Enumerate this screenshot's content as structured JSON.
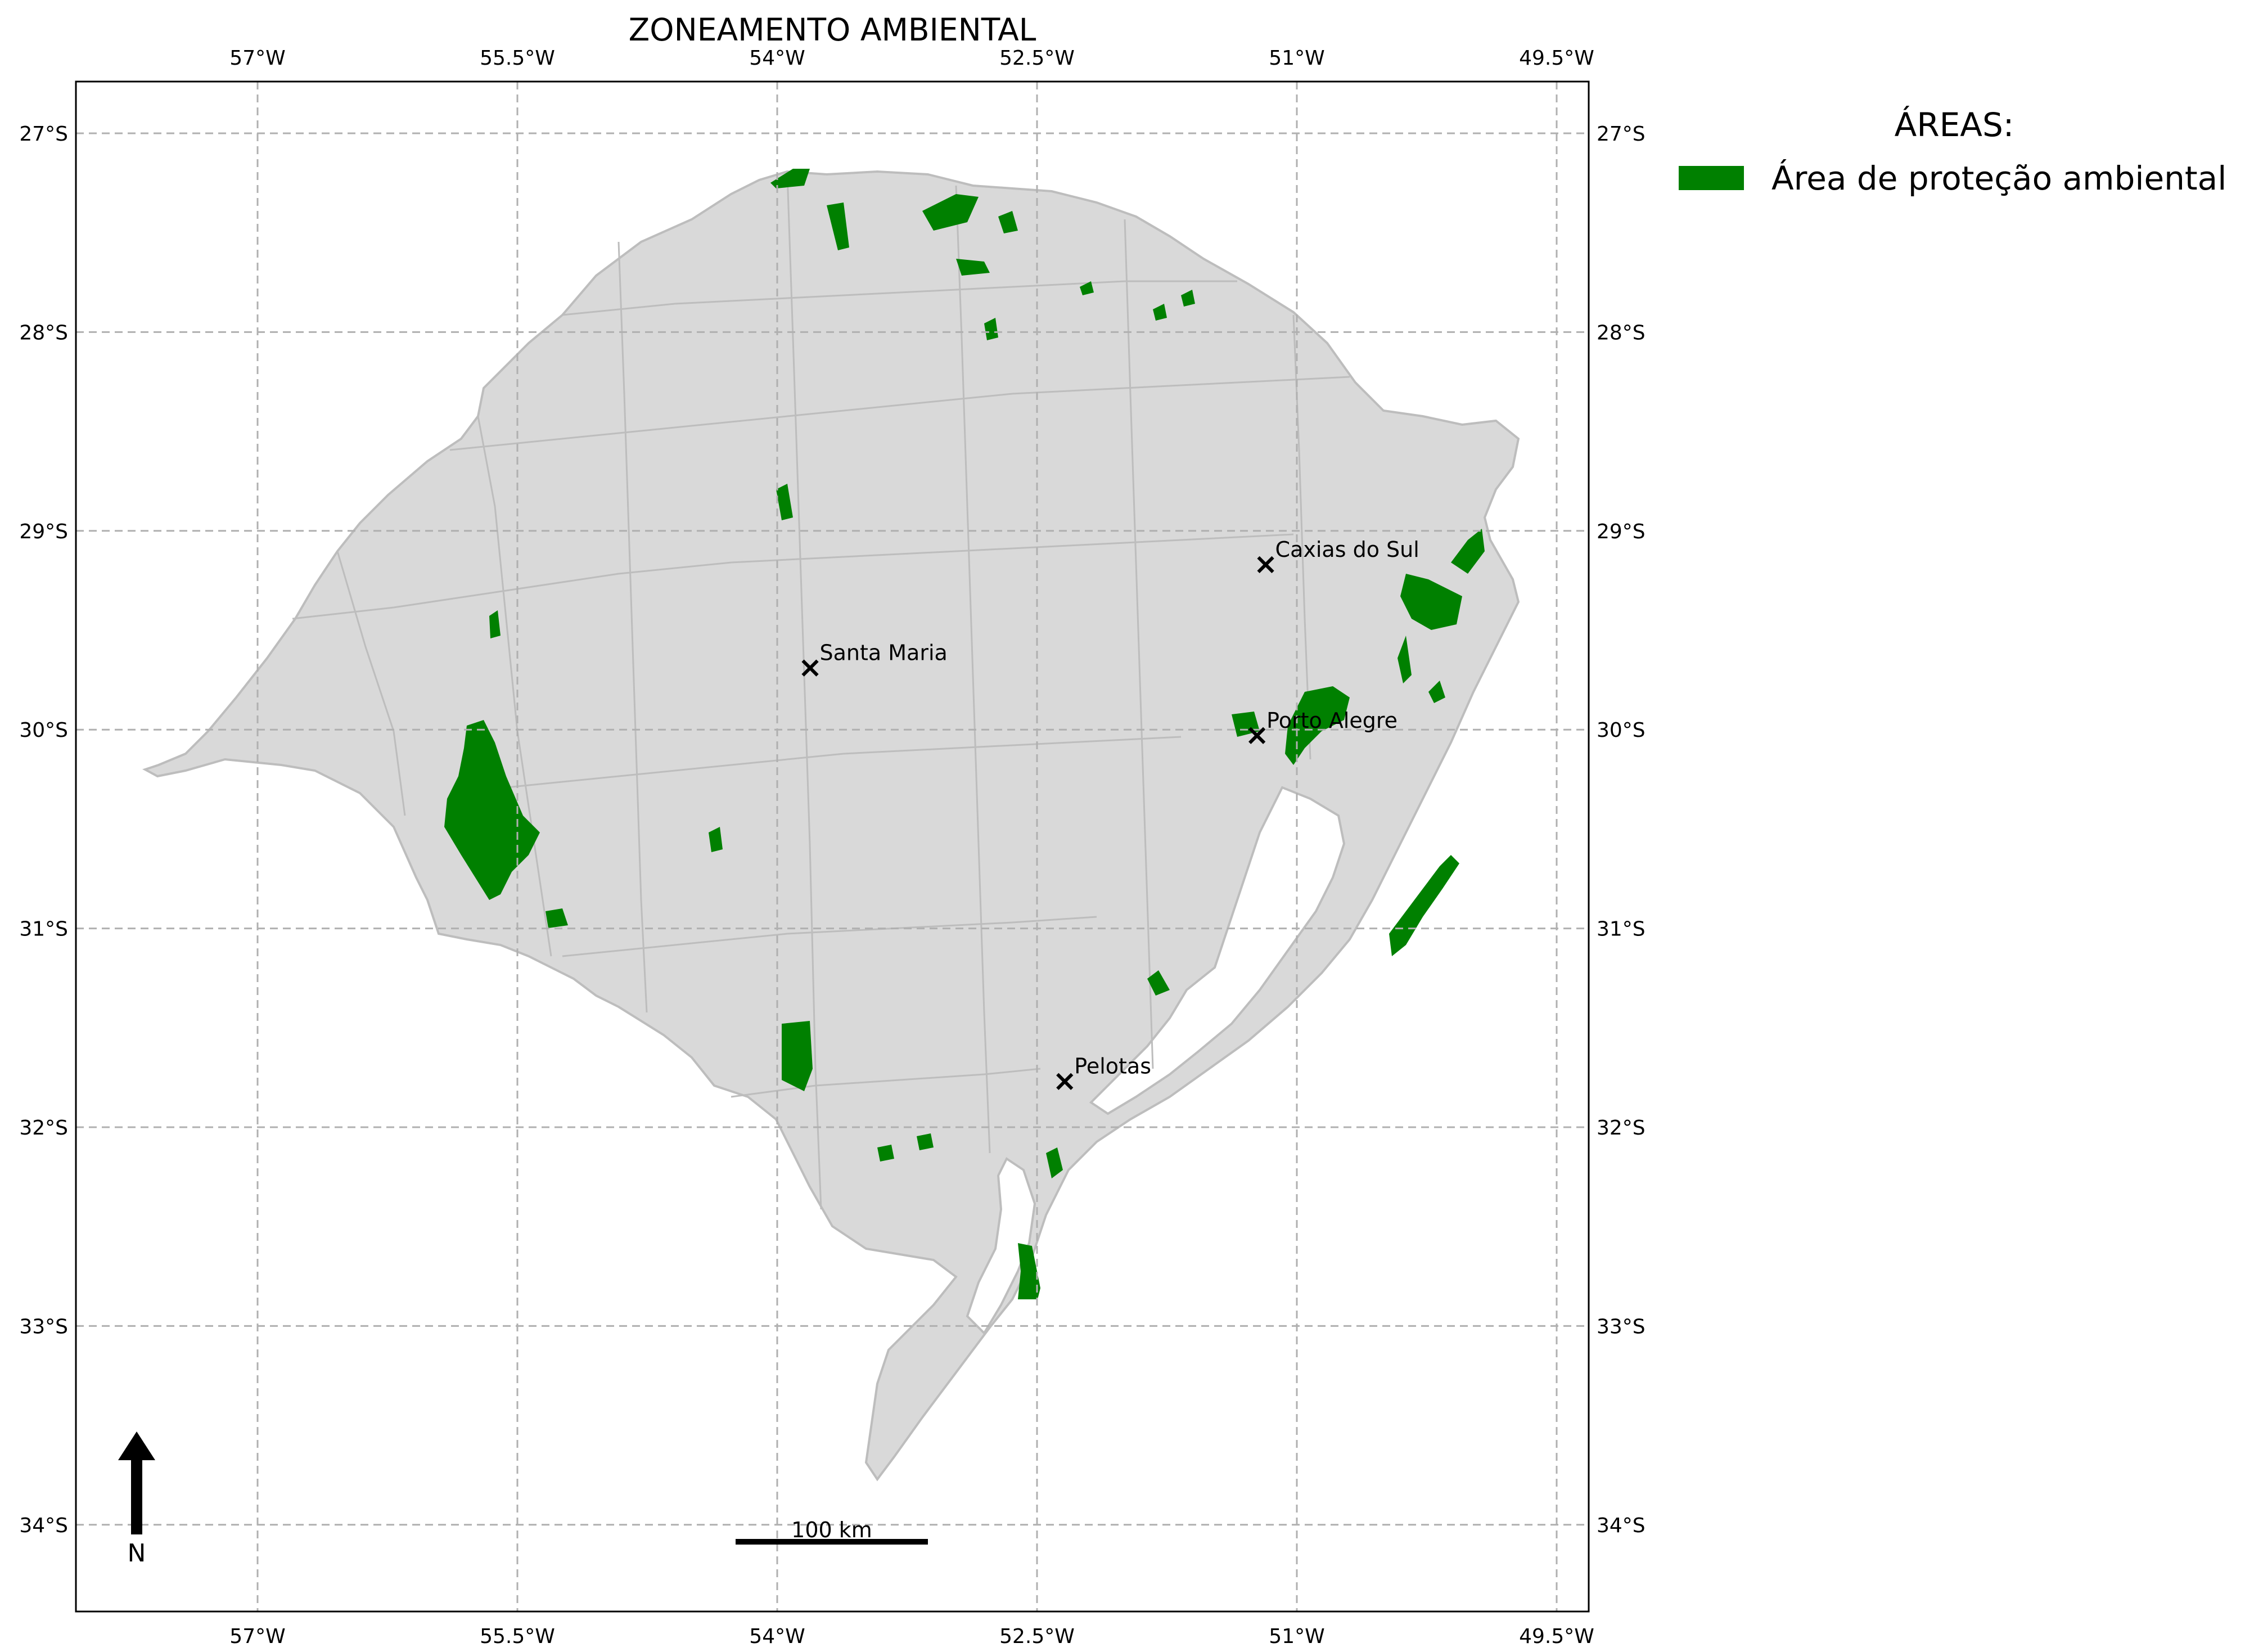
{
  "title": "ZONEAMENTO AMBIENTAL",
  "colors": {
    "land": "#d9d9d9",
    "boundary": "#bdbdbd",
    "protected": "#008000",
    "grid": "#b0b0b0",
    "frame": "#000000"
  },
  "axes": {
    "lon_ticks": [
      {
        "value": -57.0,
        "label": "57°W"
      },
      {
        "value": -55.5,
        "label": "55.5°W"
      },
      {
        "value": -54.0,
        "label": "54°W"
      },
      {
        "value": -52.5,
        "label": "52.5°W"
      },
      {
        "value": -51.0,
        "label": "51°W"
      },
      {
        "value": -49.5,
        "label": "49.5°W"
      }
    ],
    "lat_ticks": [
      {
        "value": -27.0,
        "label": "27°S"
      },
      {
        "value": -28.0,
        "label": "28°S"
      },
      {
        "value": -29.0,
        "label": "29°S"
      },
      {
        "value": -30.0,
        "label": "30°S"
      },
      {
        "value": -31.0,
        "label": "31°S"
      },
      {
        "value": -32.0,
        "label": "32°S"
      },
      {
        "value": -33.0,
        "label": "33°S"
      },
      {
        "value": -34.0,
        "label": "34°S"
      }
    ],
    "grid": true
  },
  "legend": {
    "title": "ÁREAS:",
    "items": [
      {
        "label": "Área de proteção ambiental",
        "color": "#008000"
      }
    ]
  },
  "cities": [
    {
      "name": "Caxias do Sul",
      "lon": -51.18,
      "lat": -29.17
    },
    {
      "name": "Santa Maria",
      "lon": -53.81,
      "lat": -29.69
    },
    {
      "name": "Porto Alegre",
      "lon": -51.23,
      "lat": -30.03
    },
    {
      "name": "Pelotas",
      "lon": -52.34,
      "lat": -31.77
    }
  ],
  "scale_bar": {
    "label": "100 km"
  },
  "north_arrow": {
    "label": "N"
  }
}
